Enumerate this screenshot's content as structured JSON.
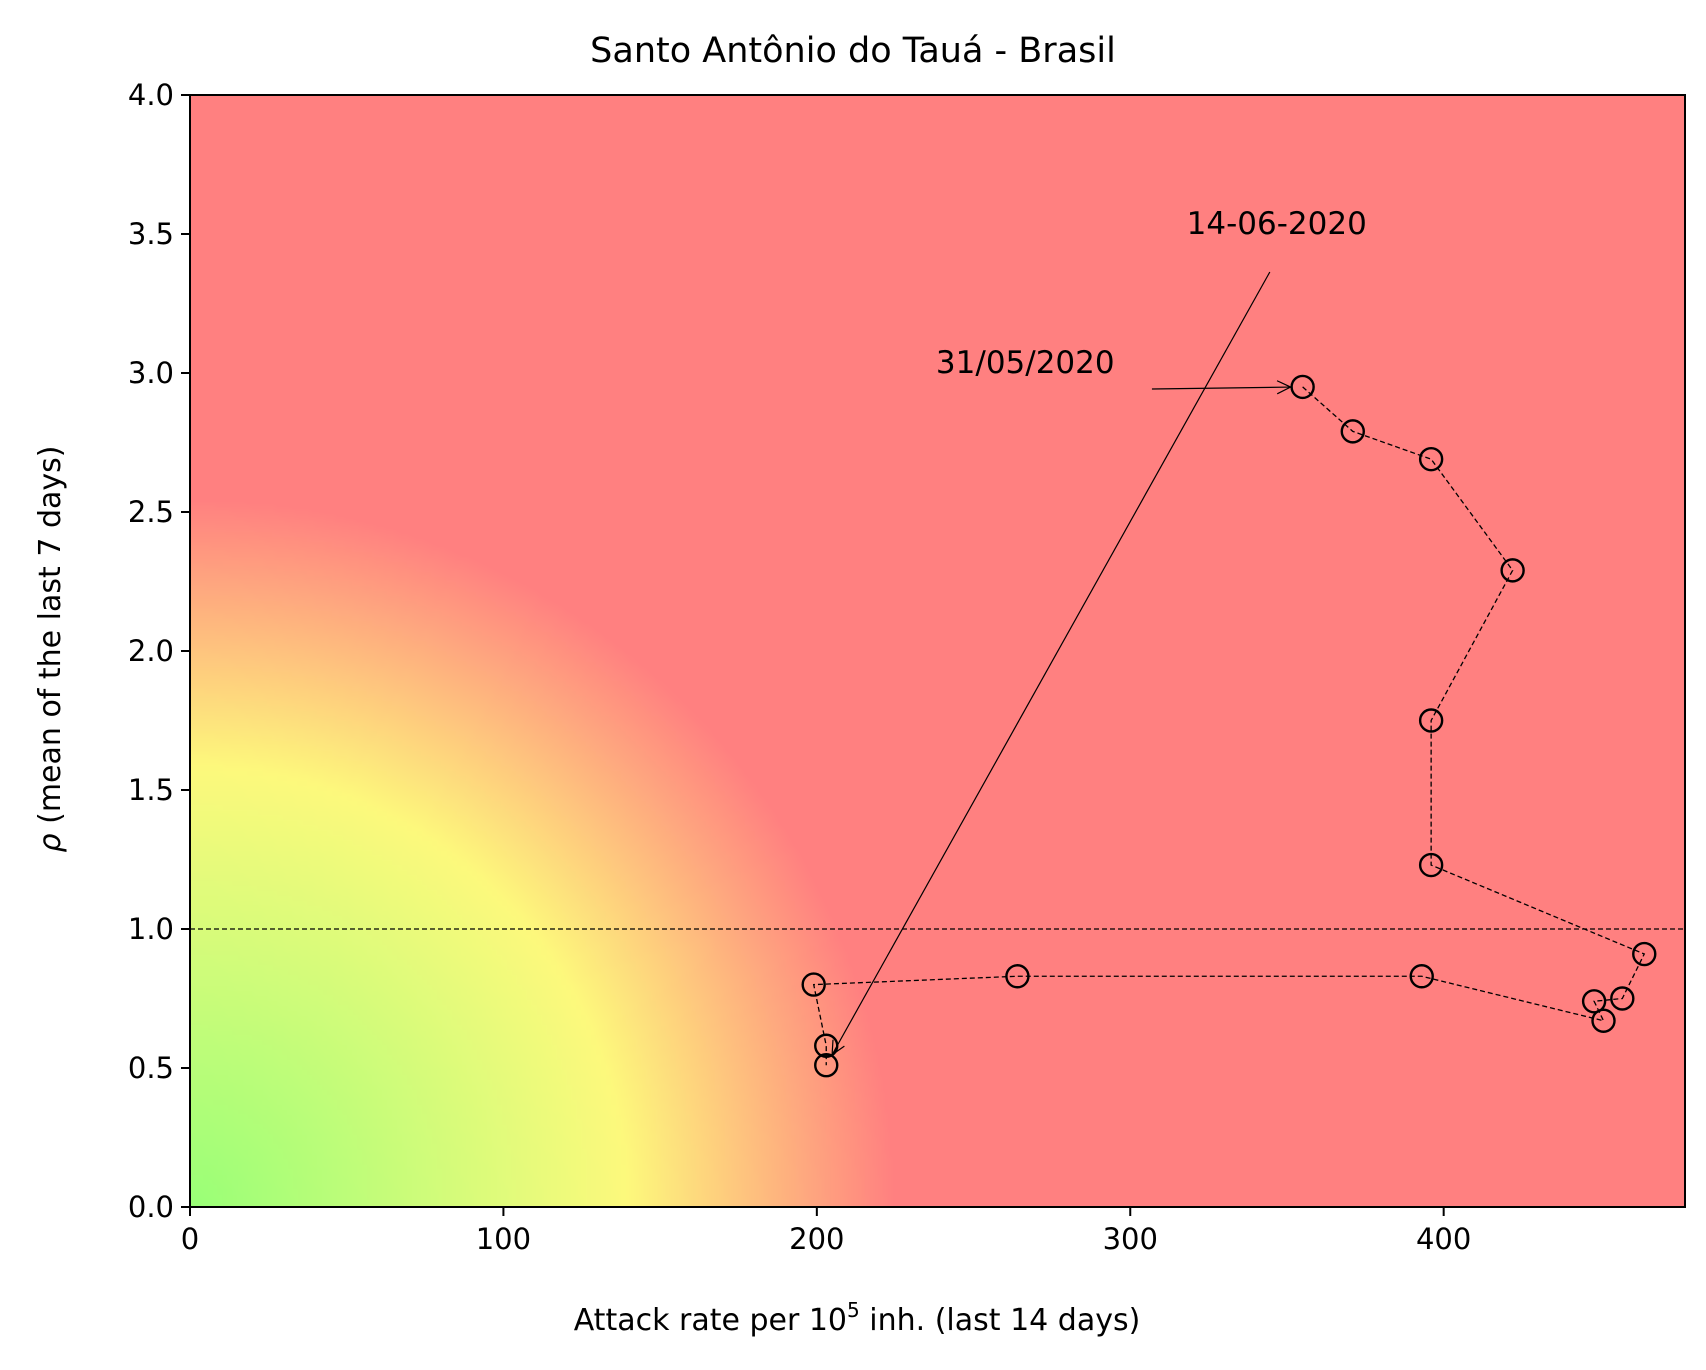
{
  "chart_data": {
    "type": "scatter",
    "title": "Santo Antônio do Tauá - Brasil",
    "xlabel_prefix": "Attack rate per 10",
    "xlabel_sup": "5",
    "xlabel_suffix": " inh. (last 14 days)",
    "ylabel_symbol": "ρ",
    "ylabel_rest": " (mean of the last 7 days)",
    "xlim": [
      0,
      477
    ],
    "ylim": [
      0,
      4
    ],
    "xticks": [
      0,
      100,
      200,
      300,
      400
    ],
    "xtick_labels": [
      "0",
      "100",
      "200",
      "300",
      "400"
    ],
    "yticks": [
      0,
      0.5,
      1,
      1.5,
      2,
      2.5,
      3,
      3.5,
      4
    ],
    "ytick_labels": [
      "0.0",
      "0.5",
      "1.0",
      "1.5",
      "2.0",
      "2.5",
      "3.0",
      "3.5",
      "4.0"
    ],
    "reference_line_y": 1.0,
    "background": "risk gradient: green near origin, yellow band, red elsewhere",
    "colors": {
      "green": "#99ff77",
      "yellow": "#fdf97c",
      "red": "#ff8080",
      "marker": "#000000"
    },
    "series": [
      {
        "points": [
          {
            "x": 355,
            "y": 2.95
          },
          {
            "x": 371,
            "y": 2.79
          },
          {
            "x": 396,
            "y": 2.69
          },
          {
            "x": 422,
            "y": 2.29
          },
          {
            "x": 396,
            "y": 1.75
          },
          {
            "x": 396,
            "y": 1.23
          },
          {
            "x": 464,
            "y": 0.91
          },
          {
            "x": 457,
            "y": 0.75
          },
          {
            "x": 448,
            "y": 0.74
          },
          {
            "x": 451,
            "y": 0.67
          },
          {
            "x": 393,
            "y": 0.83
          },
          {
            "x": 264,
            "y": 0.83
          },
          {
            "x": 199,
            "y": 0.8
          },
          {
            "x": 203,
            "y": 0.58
          },
          {
            "x": 203,
            "y": 0.51
          }
        ]
      }
    ],
    "annotations": [
      {
        "text": "31/05/2020",
        "text_x": 238,
        "text_y": 3.0,
        "target_x": 355,
        "target_y": 2.95
      },
      {
        "text": "14-06-2020",
        "text_x": 318,
        "text_y": 3.5,
        "target_x": 203,
        "target_y": 0.51
      }
    ]
  }
}
